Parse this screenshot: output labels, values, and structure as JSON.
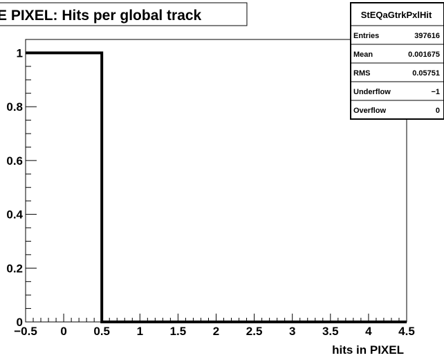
{
  "title": "E PIXEL: Hits per global track",
  "stats": {
    "name": "StEQaGtrkPxlHit",
    "rows": [
      {
        "label": "Entries",
        "value": "397616"
      },
      {
        "label": "Mean",
        "value": "0.001675"
      },
      {
        "label": "RMS",
        "value": "0.05751"
      },
      {
        "label": "Underflow",
        "value": "−1"
      },
      {
        "label": "Overflow",
        "value": "0"
      }
    ]
  },
  "xlabel": "hits in PIXEL",
  "chart_data": {
    "type": "bar",
    "title": "E PIXEL: Hits per global track",
    "xlabel": "hits in PIXEL",
    "ylabel": "",
    "xlim": [
      -0.5,
      4.5
    ],
    "ylim": [
      0,
      1.05
    ],
    "bins": [
      {
        "low": -0.5,
        "high": 0.5,
        "value": 1
      },
      {
        "low": 0.5,
        "high": 1.5,
        "value": 0
      },
      {
        "low": 1.5,
        "high": 2.5,
        "value": 0
      },
      {
        "low": 2.5,
        "high": 3.5,
        "value": 0
      },
      {
        "low": 3.5,
        "high": 4.5,
        "value": 0
      }
    ],
    "x_ticks": [
      -0.5,
      0,
      0.5,
      1,
      1.5,
      2,
      2.5,
      3,
      3.5,
      4,
      4.5
    ],
    "x_tick_labels": [
      "−0.5",
      "0",
      "0.5",
      "1",
      "1.5",
      "2",
      "2.5",
      "3",
      "3.5",
      "4",
      "4.5"
    ],
    "y_ticks": [
      0,
      0.2,
      0.4,
      0.6,
      0.8,
      1
    ],
    "y_tick_labels": [
      "0",
      "0.2",
      "0.4",
      "0.6",
      "0.8",
      "1"
    ],
    "grid": false,
    "legend": "top-right statistics box"
  }
}
